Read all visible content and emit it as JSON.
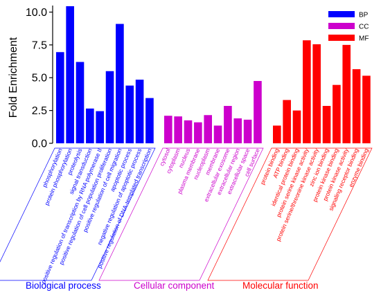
{
  "chart_data": {
    "type": "bar",
    "ylabel": "Fold Enrichment",
    "ylim": [
      0,
      10.5
    ],
    "yticks": [
      "0.0",
      "2.5",
      "5.0",
      "7.5",
      "10.0"
    ],
    "legend_position": "top-right",
    "groups": [
      {
        "name": "BP",
        "title": "Biological process",
        "color": "#0000ff",
        "categories": [
          "phosphorylation",
          "protein phosphorylation",
          "proteolysis",
          "signal transduction",
          "positive regulation of transcription by RNA polymerase II",
          "positive regulation of cell population proliferation",
          "positive regulation of cell migration",
          "apoptotic process",
          "negative regulation of apoptotic process",
          "positive regulation of DNA-templated transcription"
        ],
        "values": [
          6.95,
          10.45,
          6.2,
          2.65,
          2.45,
          5.5,
          9.1,
          4.4,
          4.85,
          3.45
        ]
      },
      {
        "name": "CC",
        "title": "Cellular component",
        "color": "#cc00cc",
        "categories": [
          "cytosol",
          "cytoplasm",
          "nucleus",
          "plasma membrane",
          "nucleoplasm",
          "membrane",
          "extracellular exosome",
          "extracellular region",
          "extracellular space",
          "cell surface"
        ],
        "values": [
          2.1,
          2.05,
          1.75,
          1.6,
          2.15,
          1.35,
          2.85,
          1.9,
          1.8,
          4.75
        ]
      },
      {
        "name": "MF",
        "title": "Molecular function",
        "color": "#ff0000",
        "categories": [
          "protein binding",
          "ATP binding",
          "identical protein binding",
          "protein serine kinase activity",
          "protein serine/threonine kinase activity",
          "zinc ion binding",
          "protein kinase binding",
          "protein kinase activity",
          "signaling receptor binding",
          "enzyme binding"
        ],
        "values": [
          1.35,
          3.3,
          2.5,
          7.85,
          7.55,
          2.85,
          4.45,
          7.5,
          5.65,
          5.15
        ]
      }
    ]
  }
}
